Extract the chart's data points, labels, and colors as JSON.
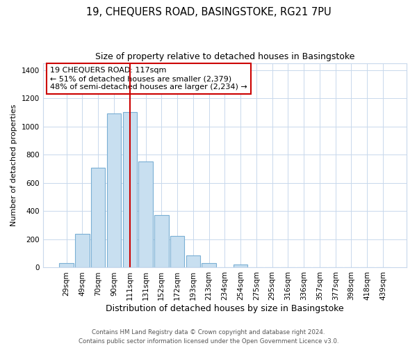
{
  "title": "19, CHEQUERS ROAD, BASINGSTOKE, RG21 7PU",
  "subtitle": "Size of property relative to detached houses in Basingstoke",
  "xlabel": "Distribution of detached houses by size in Basingstoke",
  "ylabel": "Number of detached properties",
  "bar_labels": [
    "29sqm",
    "49sqm",
    "70sqm",
    "90sqm",
    "111sqm",
    "131sqm",
    "152sqm",
    "172sqm",
    "193sqm",
    "213sqm",
    "234sqm",
    "254sqm",
    "275sqm",
    "295sqm",
    "316sqm",
    "336sqm",
    "357sqm",
    "377sqm",
    "398sqm",
    "418sqm",
    "439sqm"
  ],
  "bar_values": [
    30,
    240,
    710,
    1095,
    1100,
    750,
    370,
    225,
    85,
    30,
    0,
    20,
    0,
    0,
    0,
    0,
    0,
    0,
    0,
    0,
    0
  ],
  "bar_color": "#c8dff0",
  "bar_edge_color": "#7aafd4",
  "marker_index": 4,
  "marker_color": "#cc0000",
  "ylim": [
    0,
    1450
  ],
  "yticks": [
    0,
    200,
    400,
    600,
    800,
    1000,
    1200,
    1400
  ],
  "annotation_text": "19 CHEQUERS ROAD: 117sqm\n← 51% of detached houses are smaller (2,379)\n48% of semi-detached houses are larger (2,234) →",
  "annotation_box_color": "#ffffff",
  "annotation_box_edge": "#cc0000",
  "footer1": "Contains HM Land Registry data © Crown copyright and database right 2024.",
  "footer2": "Contains public sector information licensed under the Open Government Licence v3.0.",
  "bg_color": "#ffffff",
  "grid_color": "#c8d8ec"
}
